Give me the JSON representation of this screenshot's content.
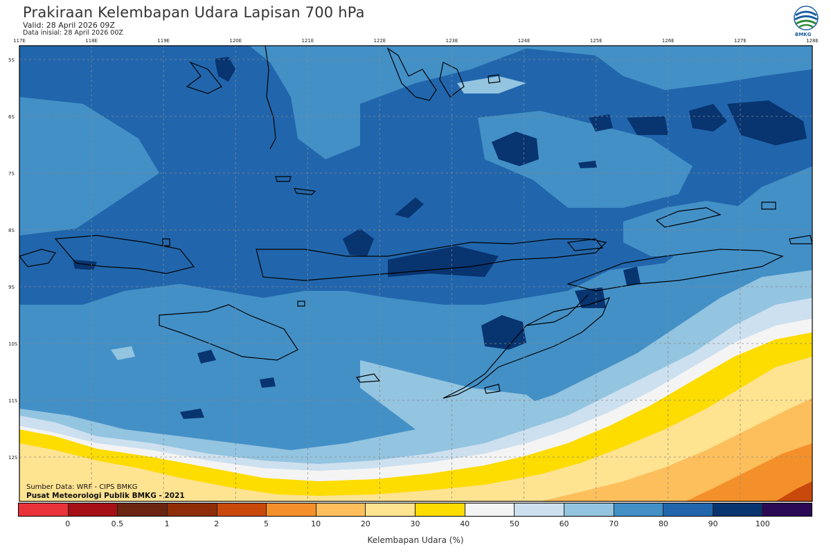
{
  "header": {
    "title": "Prakiraan Kelembapan Udara Lapisan 700 hPa",
    "valid": "Valid: 28 April 2026 09Z",
    "initial": "Data inisial: 28 April 2026 00Z",
    "logo_text": "BMKG"
  },
  "axes": {
    "lon_labels": [
      "117E",
      "118E",
      "119E",
      "120E",
      "121E",
      "122E",
      "123E",
      "124E",
      "125E",
      "126E",
      "127E",
      "128E"
    ],
    "lat_labels": [
      "5S",
      "6S",
      "7S",
      "8S",
      "9S",
      "10S",
      "11S",
      "12S"
    ]
  },
  "credits": {
    "source": "Sumber Data: WRF - CIPS BMKG",
    "producer": "Pusat Meteorologi Publik BMKG - 2021"
  },
  "legend": {
    "title": "Kelembapan Udara (%)",
    "ticks": [
      "0",
      "0.5",
      "1",
      "2",
      "5",
      "10",
      "20",
      "30",
      "40",
      "50",
      "60",
      "70",
      "80",
      "90",
      "100"
    ],
    "colors": [
      "#e8333a",
      "#a50f15",
      "#6b2410",
      "#8e2d08",
      "#c8490b",
      "#f4902a",
      "#fdbf5c",
      "#fee391",
      "#fddc00",
      "#f4f4f4",
      "#cde0ef",
      "#93c4e0",
      "#4390c7",
      "#2166ac",
      "#083470",
      "#2a0a55"
    ]
  },
  "map_colors": {
    "c100": "#2a0a55",
    "c90": "#083470",
    "c80": "#2166ac",
    "c70": "#4390c7",
    "c60": "#93c4e0",
    "c50": "#cde0ef",
    "c40": "#f4f4f4",
    "c30": "#fddc00",
    "c20": "#fee391",
    "c10": "#fdbf5c",
    "c5": "#f4902a",
    "c2": "#c8490b"
  }
}
